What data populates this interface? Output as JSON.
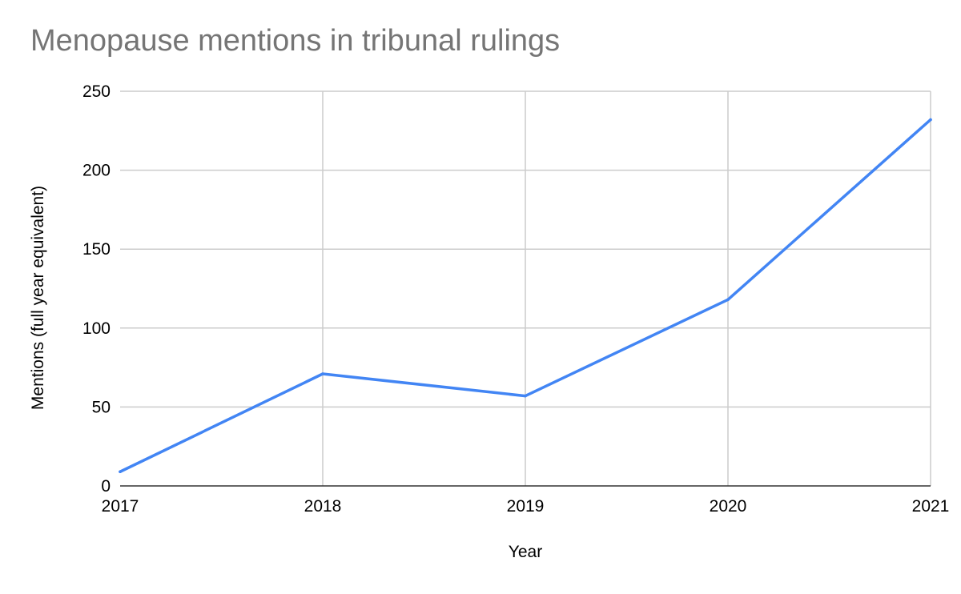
{
  "chart_data": {
    "type": "line",
    "title": "Menopause mentions in tribunal rulings",
    "xlabel": "Year",
    "ylabel": "Mentions (full year equivalent)",
    "x": [
      "2017",
      "2018",
      "2019",
      "2020",
      "2021"
    ],
    "series": [
      {
        "values": [
          9,
          71,
          57,
          118,
          232
        ],
        "color": "#4285f4"
      }
    ],
    "ylim": [
      0,
      250
    ],
    "yticks": [
      "0",
      "50",
      "100",
      "150",
      "200",
      "250"
    ],
    "grid": true,
    "legend": "none"
  }
}
